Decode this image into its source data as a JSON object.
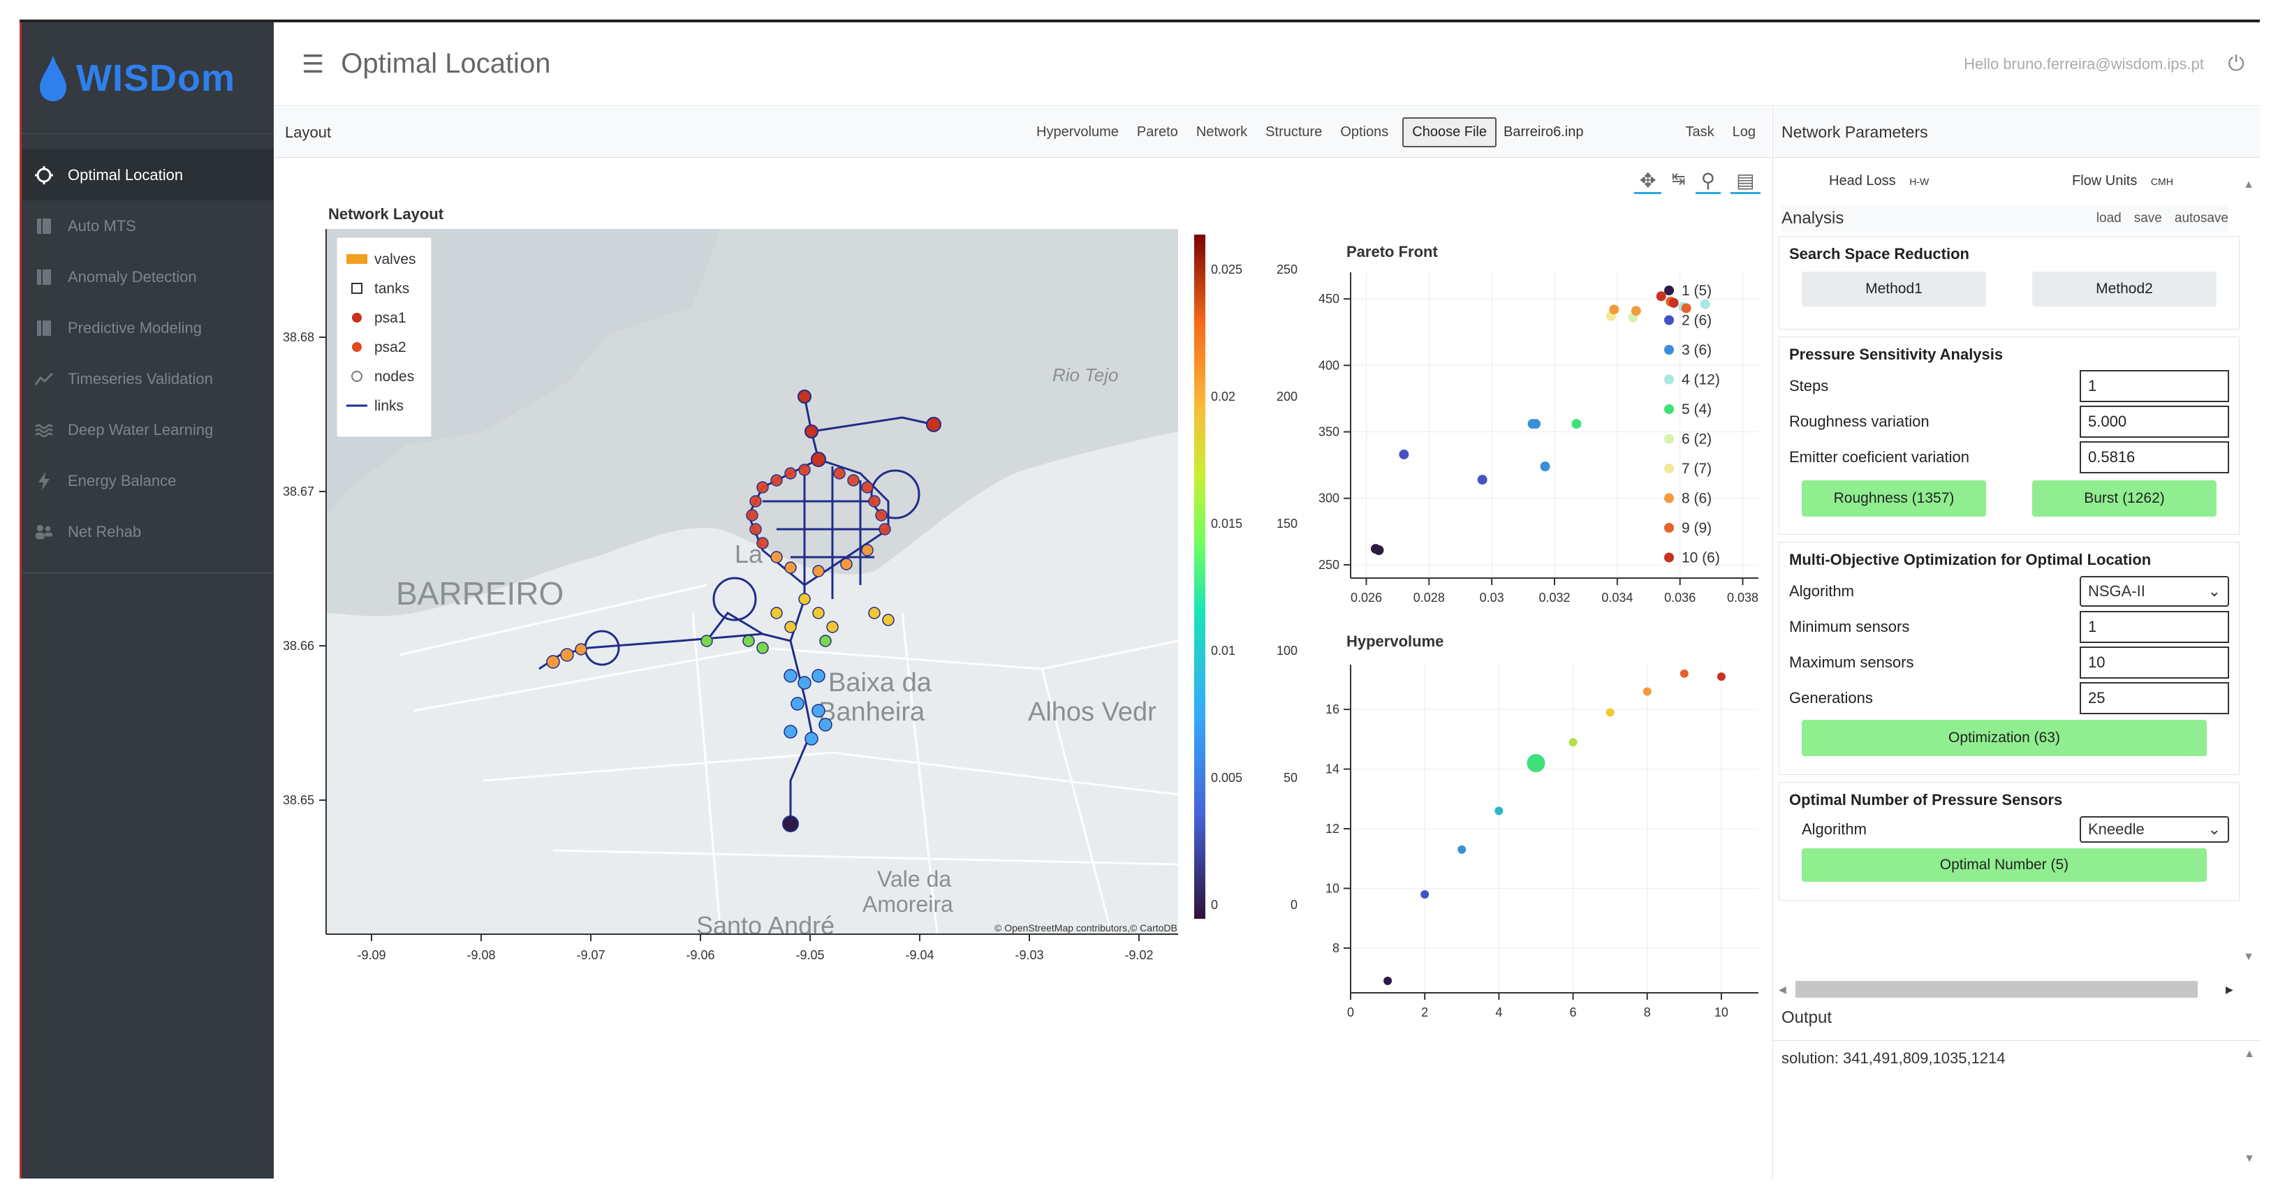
{
  "app": {
    "brand": "WISDom",
    "page_title": "Optimal Location",
    "greeting": "Hello bruno.ferreira@wisdom.ips.pt"
  },
  "sidebar": {
    "items": [
      {
        "label": "Optimal Location",
        "icon": "circle-outline-icon",
        "active": true
      },
      {
        "label": "Auto MTS",
        "icon": "book-icon"
      },
      {
        "label": "Anomaly Detection",
        "icon": "book-icon"
      },
      {
        "label": "Predictive Modeling",
        "icon": "book-icon"
      },
      {
        "label": "Timeseries Validation",
        "icon": "line-chart-icon"
      },
      {
        "label": "Deep Water Learning",
        "icon": "water-icon"
      },
      {
        "label": "Energy Balance",
        "icon": "bolt-icon"
      },
      {
        "label": "Net Rehab",
        "icon": "users-icon"
      }
    ]
  },
  "toolbar": {
    "label": "Layout",
    "tabs": [
      "Hypervolume",
      "Pareto",
      "Network",
      "Structure",
      "Options"
    ],
    "choose_file": "Choose File",
    "file_name": "Barreiro6.inp",
    "task": "Task",
    "log": "Log"
  },
  "network_map": {
    "title": "Network Layout",
    "legend": [
      "valves",
      "tanks",
      "psa1",
      "psa2",
      "nodes",
      "links"
    ],
    "place_labels": [
      "BARREIRO",
      "Baixa da",
      "Banheira",
      "Alhos Vedr",
      "Rio Tejo",
      "Vale da",
      "Amoreira",
      "Santo André",
      "La"
    ],
    "attribution": "© OpenStreetMap contributors,© CartoDB",
    "x_ticks": [
      "-9.09",
      "-9.08",
      "-9.07",
      "-9.06",
      "-9.05",
      "-9.04",
      "-9.03",
      "-9.02"
    ],
    "y_ticks": [
      "38.68",
      "38.67",
      "38.66",
      "38.65"
    ],
    "colorbar_ticks": [
      "0.025",
      "0.02",
      "0.015",
      "0.01",
      "0.005",
      "0"
    ],
    "colorbar_right_ticks": [
      "250",
      "200",
      "150",
      "100",
      "50",
      "0"
    ]
  },
  "chart_data": [
    {
      "type": "scatter",
      "title": "Pareto Front",
      "xlabel": "",
      "ylabel": "",
      "xlim": [
        0.0255,
        0.0385
      ],
      "ylim": [
        240,
        470
      ],
      "x_ticks": [
        "0.026",
        "0.028",
        "0.03",
        "0.032",
        "0.034",
        "0.036",
        "0.038"
      ],
      "y_ticks": [
        "250",
        "300",
        "350",
        "400",
        "450"
      ],
      "legend_placement": "top-right",
      "series": [
        {
          "name": "1 (5)",
          "color": "#2d1b45",
          "points": [
            [
              0.0263,
              262
            ],
            [
              0.0264,
              261
            ]
          ]
        },
        {
          "name": "2 (6)",
          "color": "#4452c4",
          "points": [
            [
              0.0272,
              333
            ],
            [
              0.0297,
              314
            ]
          ]
        },
        {
          "name": "3 (6)",
          "color": "#3a8fd8",
          "points": [
            [
              0.0313,
              356
            ],
            [
              0.0314,
              356
            ],
            [
              0.0317,
              324
            ]
          ]
        },
        {
          "name": "4 (12)",
          "color": "#a8e8e0",
          "points": [
            [
              0.0361,
              444
            ],
            [
              0.0368,
              446
            ]
          ]
        },
        {
          "name": "5 (4)",
          "color": "#3ee07a",
          "points": [
            [
              0.0327,
              356
            ]
          ]
        },
        {
          "name": "6 (2)",
          "color": "#d8f2b0",
          "points": [
            [
              0.0345,
              436
            ]
          ]
        },
        {
          "name": "7 (7)",
          "color": "#f2e898",
          "points": [
            [
              0.0338,
              437
            ]
          ]
        },
        {
          "name": "8 (6)",
          "color": "#f39a3c",
          "points": [
            [
              0.0339,
              442
            ],
            [
              0.0346,
              441
            ]
          ]
        },
        {
          "name": "9 (9)",
          "color": "#e8602c",
          "points": [
            [
              0.0357,
              448
            ],
            [
              0.0362,
              443
            ]
          ]
        },
        {
          "name": "10 (6)",
          "color": "#c8321e",
          "points": [
            [
              0.0354,
              452
            ],
            [
              0.0358,
              447
            ]
          ]
        }
      ]
    },
    {
      "type": "scatter",
      "title": "Hypervolume",
      "xlabel": "",
      "ylabel": "",
      "xlim": [
        0,
        11
      ],
      "ylim": [
        6.5,
        17.5
      ],
      "x_ticks": [
        "0",
        "2",
        "4",
        "6",
        "8",
        "10"
      ],
      "y_ticks": [
        "8",
        "10",
        "12",
        "14",
        "16"
      ],
      "x": [
        1,
        2,
        3,
        4,
        5,
        6,
        7,
        8,
        9,
        10
      ],
      "values": [
        6.9,
        9.8,
        11.3,
        12.6,
        14.2,
        14.9,
        15.9,
        16.6,
        17.2,
        17.1
      ],
      "colors": [
        "#2d1b45",
        "#4452c4",
        "#3a8fd8",
        "#2bb5c8",
        "#3ee07a",
        "#b4e048",
        "#f2c830",
        "#f39a3c",
        "#e8602c",
        "#c8321e"
      ]
    }
  ],
  "network_parameters": {
    "title": "Network Parameters",
    "head_loss_label": "Head Loss",
    "head_loss_value": "H-W",
    "flow_units_label": "Flow Units",
    "flow_units_value": "CMH",
    "analysis_label": "Analysis",
    "load": "load",
    "save": "save",
    "autosave": "autosave",
    "search_space": {
      "title": "Search Space Reduction",
      "method1": "Method1",
      "method2": "Method2"
    },
    "psa": {
      "title": "Pressure Sensitivity Analysis",
      "steps_label": "Steps",
      "steps_value": "1",
      "roughness_label": "Roughness variation",
      "roughness_value": "5.000",
      "emitter_label": "Emitter coeficient variation",
      "emitter_value": "0.5816",
      "roughness_button": "Roughness (1357)",
      "burst_button": "Burst (1262)"
    },
    "moo": {
      "title": "Multi-Objective Optimization for Optimal Location",
      "algorithm_label": "Algorithm",
      "algorithm_value": "NSGA-II",
      "min_label": "Minimum sensors",
      "min_value": "1",
      "max_label": "Maximum sensors",
      "max_value": "10",
      "gen_label": "Generations",
      "gen_value": "25",
      "button": "Optimization (63)"
    },
    "onps": {
      "title": "Optimal Number of Pressure Sensors",
      "algorithm_label": "Algorithm",
      "algorithm_value": "Kneedle",
      "button": "Optimal Number (5)"
    }
  },
  "output": {
    "label": "Output",
    "text": "solution: 341,491,809,1035,1214"
  }
}
